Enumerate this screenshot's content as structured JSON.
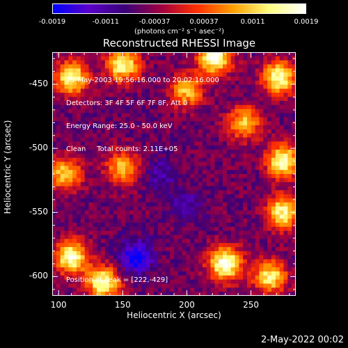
{
  "colorbar": {
    "tick_labels": [
      "-0.0019",
      "-0.0011",
      "-0.00037",
      "0.00037",
      "0.0011",
      "0.0019"
    ],
    "tick_values": [
      -0.0019,
      -0.0011,
      -0.00037,
      0.00037,
      0.0011,
      0.0019
    ],
    "range": [
      -0.0019,
      0.0019
    ],
    "colors": [
      "#0000ff",
      "#5a00c8",
      "#3a0078",
      "#a00040",
      "#ff3000",
      "#ffa000",
      "#ffff80",
      "#ffffff"
    ],
    "unit_label": "(photons cm⁻² s⁻¹ asec⁻²)"
  },
  "title": "Reconstructed RHESSI Image",
  "info_lines": [
    "29-May-2003 19:56:16.000 to 20:02:16.000",
    "Detectors: 3F 4F 5F 6F 7F 8F, Att 0",
    "Energy Range: 25.0 - 50.0 keV",
    "Clean     Total counts: 2.11E+05"
  ],
  "peak_text": "Position of Peak = [222,-429]",
  "axes": {
    "xlabel": "Heliocentric X (arcsec)",
    "ylabel": "Heliocentric Y (arcsec)",
    "xticks": [
      "100",
      "150",
      "200",
      "250"
    ],
    "yticks": [
      "-450",
      "-500",
      "-550",
      "-600"
    ]
  },
  "footer_date": "2-May-2022 00:02",
  "chart_data": {
    "type": "heatmap",
    "title": "Reconstructed RHESSI Image",
    "xlabel": "Heliocentric X (arcsec)",
    "ylabel": "Heliocentric Y (arcsec)",
    "xlim": [
      95,
      285
    ],
    "ylim": [
      -615,
      -425
    ],
    "x_ticks": [
      100,
      150,
      200,
      250
    ],
    "y_ticks": [
      -450,
      -500,
      -550,
      -600
    ],
    "value_range": [
      -0.0019,
      0.0019
    ],
    "peak_position": [
      222,
      -429
    ],
    "bright_regions": [
      {
        "x": 110,
        "y": -445,
        "level": 0.0016
      },
      {
        "x": 150,
        "y": -435,
        "level": 0.0016
      },
      {
        "x": 222,
        "y": -429,
        "level": 0.0019
      },
      {
        "x": 272,
        "y": -445,
        "level": 0.0017
      },
      {
        "x": 245,
        "y": -480,
        "level": 0.0011
      },
      {
        "x": 275,
        "y": -510,
        "level": 0.0017
      },
      {
        "x": 105,
        "y": -520,
        "level": 0.0012
      },
      {
        "x": 150,
        "y": -515,
        "level": 0.0011
      },
      {
        "x": 275,
        "y": -550,
        "level": 0.0015
      },
      {
        "x": 110,
        "y": -585,
        "level": 0.0018
      },
      {
        "x": 135,
        "y": -605,
        "level": 0.0017
      },
      {
        "x": 230,
        "y": -590,
        "level": 0.0019
      },
      {
        "x": 265,
        "y": -600,
        "level": 0.0014
      },
      {
        "x": 200,
        "y": -455,
        "level": 0.0011
      }
    ],
    "dark_regions": [
      {
        "x": 160,
        "y": -585,
        "level": -0.0019
      },
      {
        "x": 200,
        "y": -545,
        "level": -0.0011
      },
      {
        "x": 180,
        "y": -520,
        "level": -0.0011
      }
    ]
  }
}
